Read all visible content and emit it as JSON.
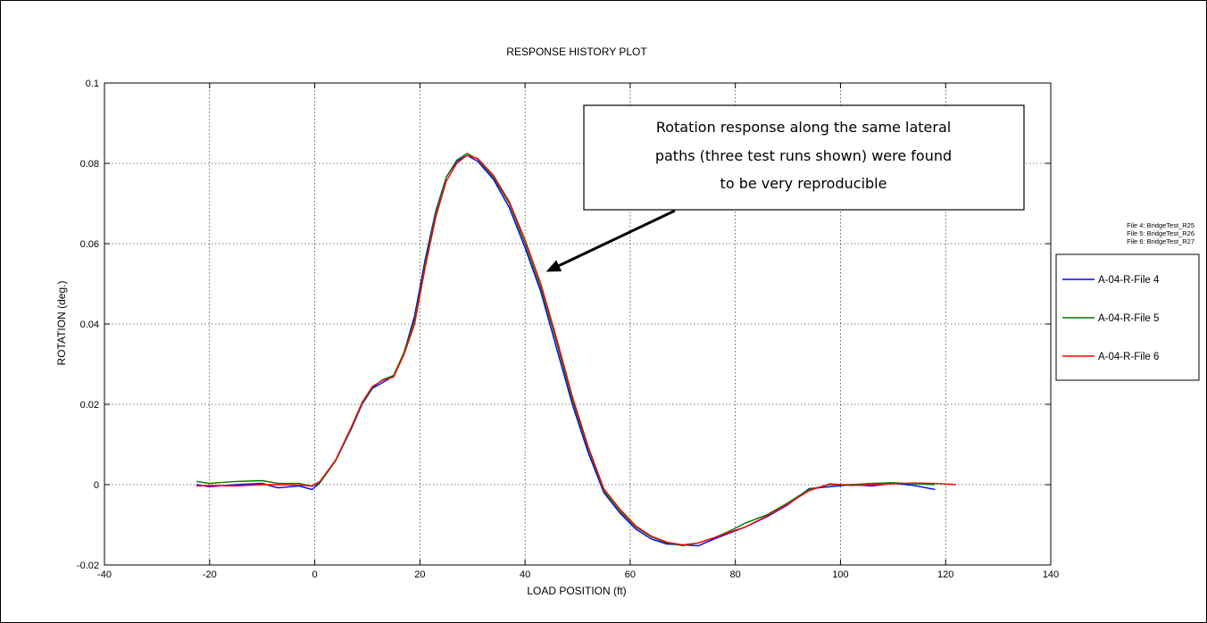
{
  "chart_data": {
    "type": "line",
    "title": "RESPONSE HISTORY PLOT",
    "xlabel": "LOAD POSITION (ft)",
    "ylabel": "ROTATION (deg.)",
    "xlim": [
      -40,
      140
    ],
    "ylim": [
      -0.02,
      0.1
    ],
    "xticks": [
      -40,
      -20,
      0,
      20,
      40,
      60,
      80,
      100,
      120,
      140
    ],
    "yticks": [
      -0.02,
      0,
      0.02,
      0.04,
      0.06,
      0.08,
      0.1
    ],
    "xtick_labels": [
      "-40",
      "-20",
      "0",
      "20",
      "40",
      "60",
      "80",
      "100",
      "120",
      "140"
    ],
    "ytick_labels": [
      "-0.02",
      "0",
      "0.02",
      "0.04",
      "0.06",
      "0.08",
      "0.1"
    ],
    "grid": true,
    "legend_position": "right",
    "file_list": [
      "File 4: BridgeTest_R25",
      "File 5: BridgeTest_R26",
      "File 6: BridgeTest_R27"
    ],
    "annotation": {
      "lines": [
        "Rotation response along the same lateral",
        "paths (three test runs shown) were found",
        "to be very reproducible"
      ],
      "arrow_target": [
        44,
        0.053
      ]
    },
    "series": [
      {
        "name": "A-04-R-File 4",
        "color": "#0000ff",
        "points": [
          [
            -22.5,
            0.0
          ],
          [
            -20,
            -0.0005
          ],
          [
            -15,
            0.0
          ],
          [
            -10,
            0.0003
          ],
          [
            -7,
            -0.0008
          ],
          [
            -3,
            -0.0003
          ],
          [
            -0.5,
            -0.0012
          ],
          [
            1,
            0.0005
          ],
          [
            4,
            0.006
          ],
          [
            7,
            0.014
          ],
          [
            9,
            0.02
          ],
          [
            11,
            0.024
          ],
          [
            13,
            0.0255
          ],
          [
            15,
            0.027
          ],
          [
            17,
            0.033
          ],
          [
            19,
            0.042
          ],
          [
            21,
            0.056
          ],
          [
            23,
            0.068
          ],
          [
            25,
            0.0765
          ],
          [
            27,
            0.0805
          ],
          [
            29,
            0.082
          ],
          [
            31,
            0.0805
          ],
          [
            34,
            0.076
          ],
          [
            37,
            0.069
          ],
          [
            40,
            0.059
          ],
          [
            43,
            0.048
          ],
          [
            46,
            0.034
          ],
          [
            49,
            0.02
          ],
          [
            52,
            0.008
          ],
          [
            55,
            -0.002
          ],
          [
            58,
            -0.007
          ],
          [
            61,
            -0.011
          ],
          [
            64,
            -0.0135
          ],
          [
            67,
            -0.0148
          ],
          [
            70,
            -0.015
          ],
          [
            73,
            -0.0152
          ],
          [
            76,
            -0.0135
          ],
          [
            79,
            -0.012
          ],
          [
            82,
            -0.0105
          ],
          [
            86,
            -0.008
          ],
          [
            90,
            -0.005
          ],
          [
            94,
            -0.001
          ],
          [
            98,
            -0.0005
          ],
          [
            102,
            0.0
          ],
          [
            106,
            -0.0003
          ],
          [
            110,
            0.0003
          ],
          [
            114,
            -0.0002
          ],
          [
            118,
            -0.0012
          ]
        ]
      },
      {
        "name": "A-04-R-File 5",
        "color": "#007a00",
        "points": [
          [
            -22.5,
            0.0008
          ],
          [
            -20,
            0.0003
          ],
          [
            -15,
            0.0008
          ],
          [
            -10,
            0.001
          ],
          [
            -7,
            0.0003
          ],
          [
            -3,
            0.0003
          ],
          [
            -0.5,
            -0.0004
          ],
          [
            1,
            0.0005
          ],
          [
            4,
            0.006
          ],
          [
            7,
            0.0142
          ],
          [
            9,
            0.0202
          ],
          [
            11,
            0.0242
          ],
          [
            13,
            0.0262
          ],
          [
            15,
            0.0272
          ],
          [
            17,
            0.033
          ],
          [
            19,
            0.041
          ],
          [
            21,
            0.055
          ],
          [
            23,
            0.0675
          ],
          [
            25,
            0.0765
          ],
          [
            27,
            0.0808
          ],
          [
            29,
            0.0825
          ],
          [
            31,
            0.081
          ],
          [
            34,
            0.0765
          ],
          [
            37,
            0.07
          ],
          [
            40,
            0.06
          ],
          [
            43,
            0.049
          ],
          [
            46,
            0.0355
          ],
          [
            49,
            0.021
          ],
          [
            52,
            0.009
          ],
          [
            55,
            -0.0015
          ],
          [
            58,
            -0.0065
          ],
          [
            61,
            -0.0105
          ],
          [
            64,
            -0.013
          ],
          [
            67,
            -0.0145
          ],
          [
            70,
            -0.0152
          ],
          [
            73,
            -0.0145
          ],
          [
            76,
            -0.0132
          ],
          [
            79,
            -0.0115
          ],
          [
            82,
            -0.0095
          ],
          [
            86,
            -0.0075
          ],
          [
            90,
            -0.0045
          ],
          [
            94,
            -0.0012
          ],
          [
            98,
            0.0
          ],
          [
            102,
            0.0
          ],
          [
            106,
            0.0003
          ],
          [
            110,
            0.0005
          ],
          [
            114,
            0.0002
          ],
          [
            118,
            0.0
          ]
        ]
      },
      {
        "name": "A-04-R-File 6",
        "color": "#ff0000",
        "points": [
          [
            -22.5,
            -0.0003
          ],
          [
            -20,
            -0.0002
          ],
          [
            -15,
            -0.0003
          ],
          [
            -10,
            0.0
          ],
          [
            -7,
            0.0
          ],
          [
            -3,
            -0.0001
          ],
          [
            -0.5,
            -0.0003
          ],
          [
            1,
            0.0008
          ],
          [
            4,
            0.0062
          ],
          [
            7,
            0.0145
          ],
          [
            9,
            0.0205
          ],
          [
            11,
            0.0245
          ],
          [
            13,
            0.026
          ],
          [
            15,
            0.0268
          ],
          [
            17,
            0.0325
          ],
          [
            19,
            0.04
          ],
          [
            21,
            0.054
          ],
          [
            23,
            0.0665
          ],
          [
            25,
            0.0755
          ],
          [
            27,
            0.08
          ],
          [
            29,
            0.082
          ],
          [
            31,
            0.0812
          ],
          [
            34,
            0.077
          ],
          [
            37,
            0.0705
          ],
          [
            40,
            0.061
          ],
          [
            43,
            0.05
          ],
          [
            46,
            0.0365
          ],
          [
            49,
            0.022
          ],
          [
            52,
            0.0095
          ],
          [
            55,
            -0.001
          ],
          [
            58,
            -0.006
          ],
          [
            61,
            -0.0102
          ],
          [
            64,
            -0.0128
          ],
          [
            67,
            -0.0143
          ],
          [
            70,
            -0.015
          ],
          [
            73,
            -0.0145
          ],
          [
            76,
            -0.0132
          ],
          [
            79,
            -0.0118
          ],
          [
            82,
            -0.0105
          ],
          [
            86,
            -0.0078
          ],
          [
            90,
            -0.0048
          ],
          [
            94,
            -0.0015
          ],
          [
            98,
            0.0002
          ],
          [
            102,
            -0.0002
          ],
          [
            106,
            0.0
          ],
          [
            110,
            0.0002
          ],
          [
            114,
            0.0004
          ],
          [
            118,
            0.0003
          ],
          [
            122,
            0.0
          ]
        ]
      }
    ]
  }
}
